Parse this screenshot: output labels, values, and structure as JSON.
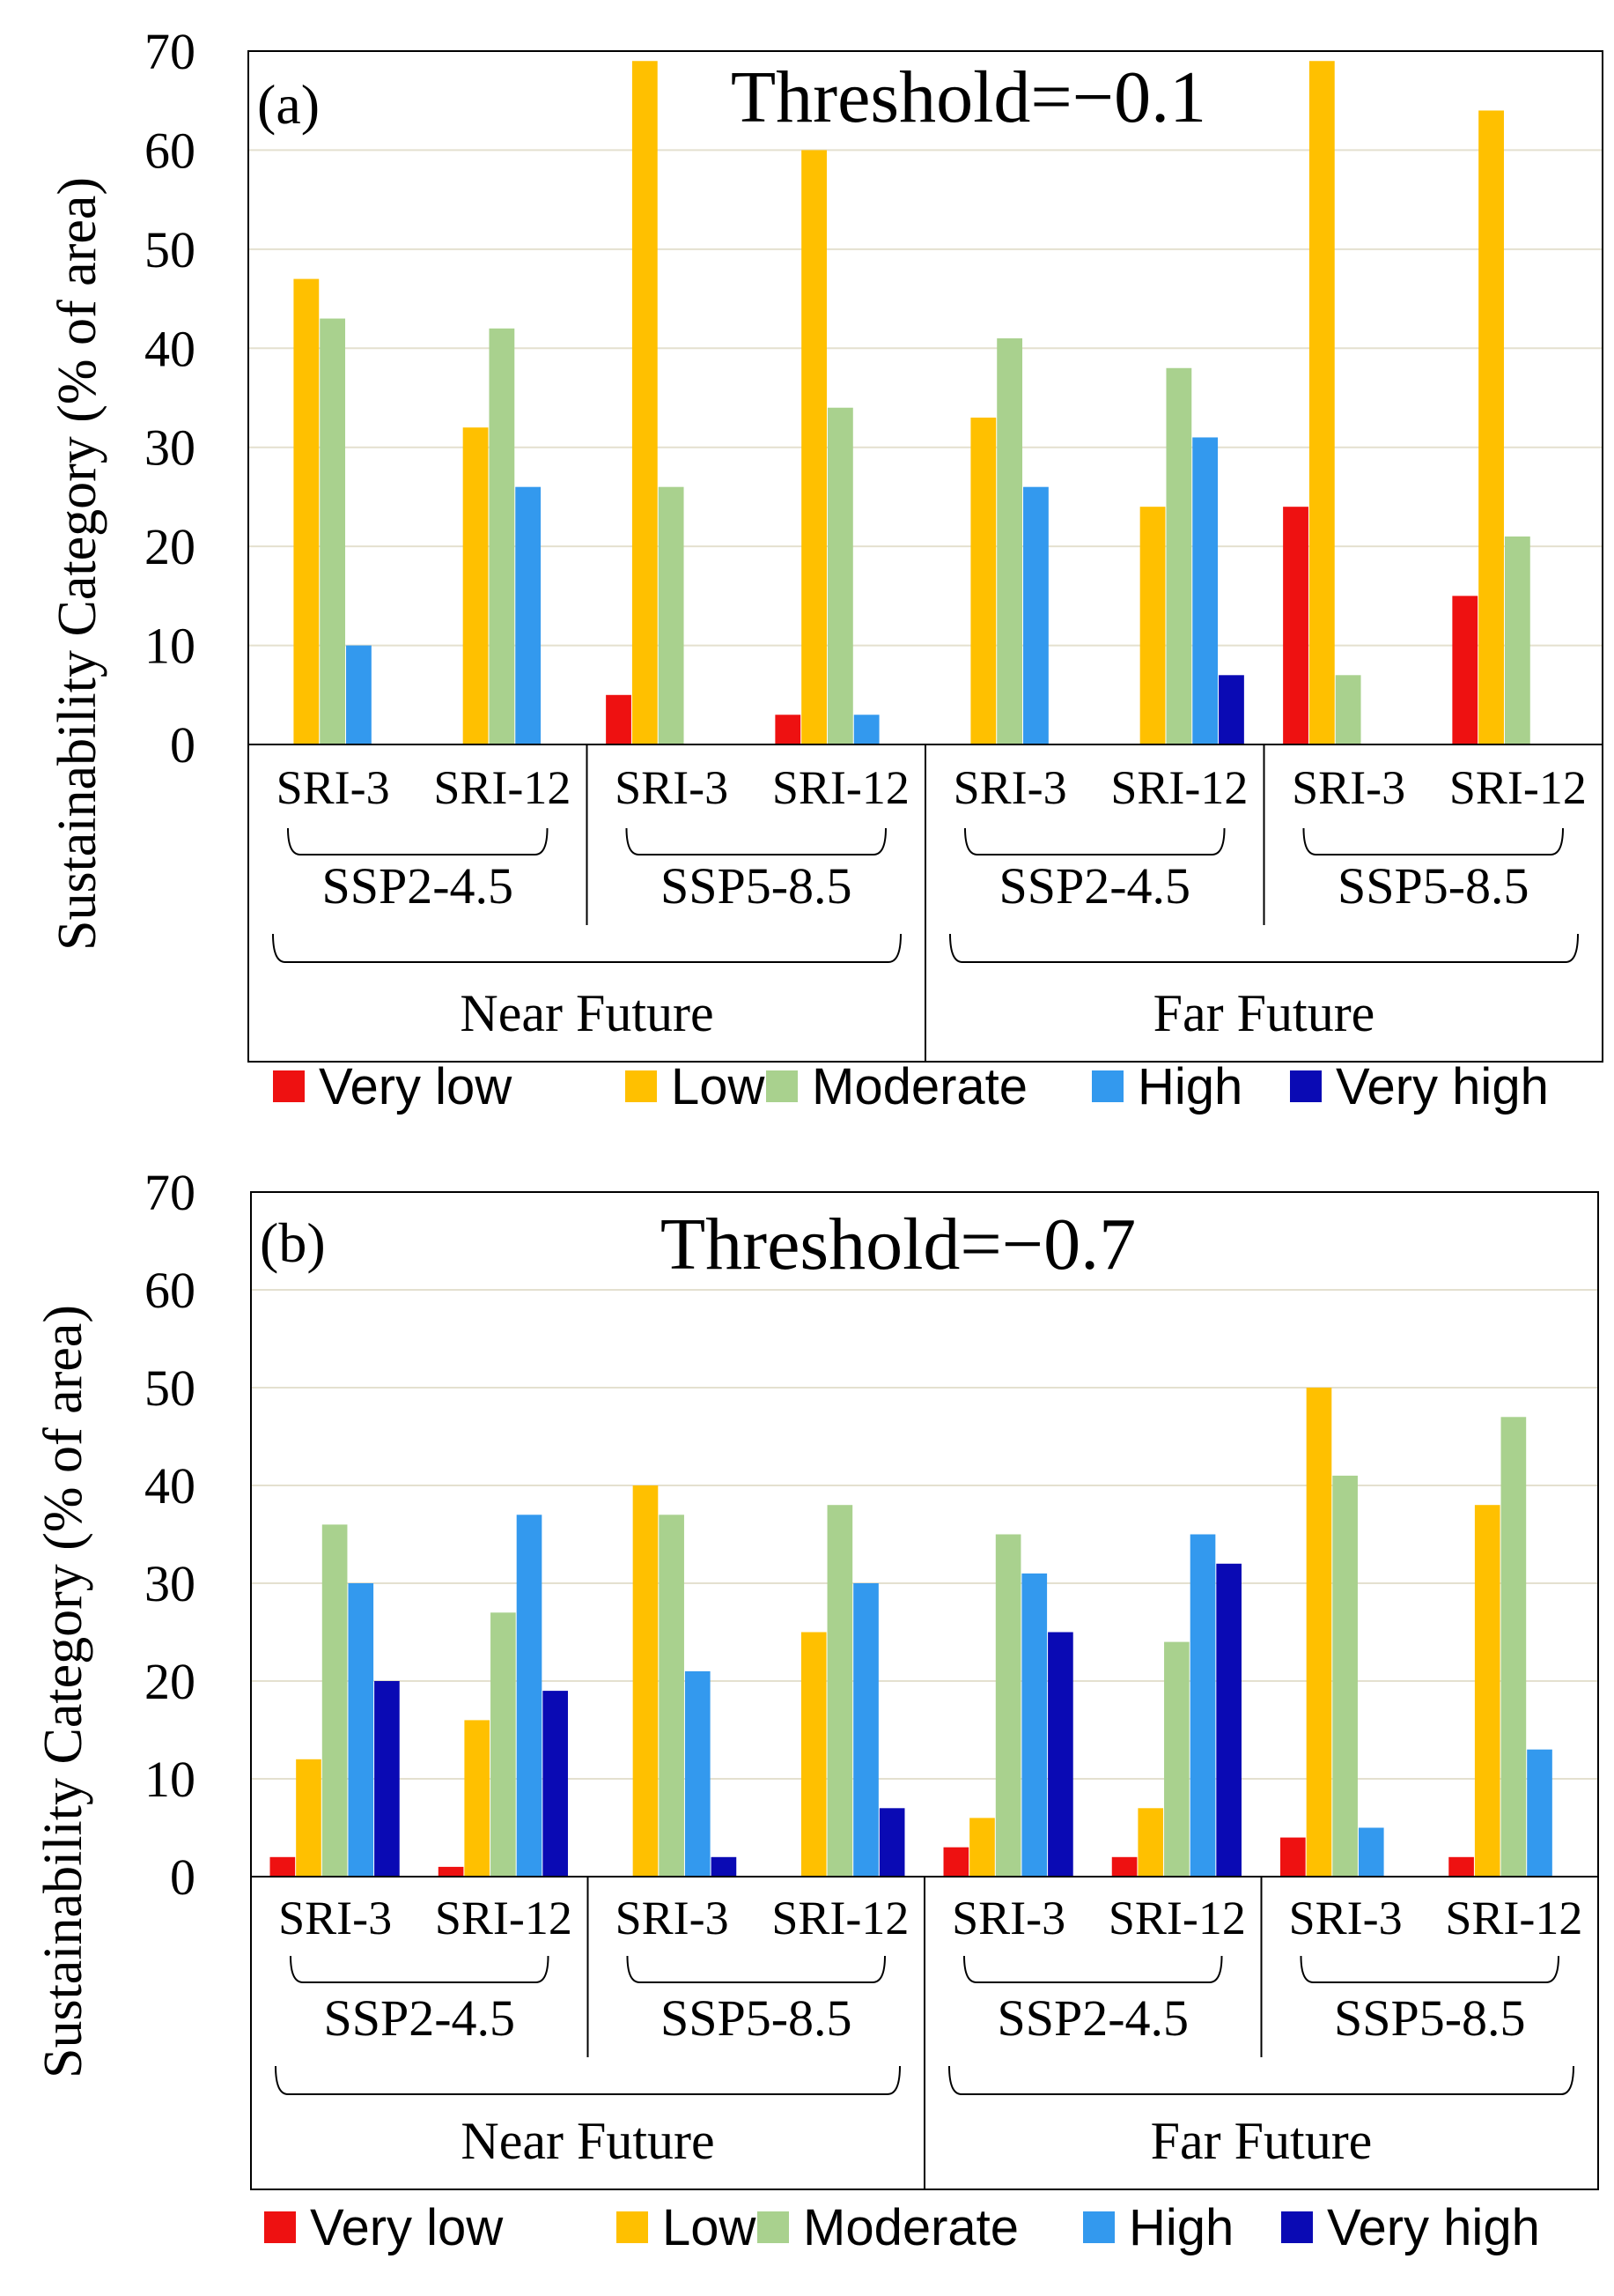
{
  "y_axis_label": "Sustainability Category (% of area)",
  "legend": {
    "items": [
      {
        "label": "Very low",
        "color": "#ee1111"
      },
      {
        "label": "Low",
        "color": "#ffc000"
      },
      {
        "label": "Moderate",
        "color": "#a9d18e"
      },
      {
        "label": "High",
        "color": "#3399ee"
      },
      {
        "label": "Very high",
        "color": "#0a0ab4"
      }
    ]
  },
  "chart_data": [
    {
      "type": "bar",
      "panel_label": "(a)",
      "title": "Threshold=−0.1",
      "ylabel": "Sustainability Category (% of area)",
      "ylim": [
        0,
        70
      ],
      "yticks": [
        "0",
        "10",
        "20",
        "30",
        "40",
        "50",
        "60",
        "70"
      ],
      "grid": true,
      "categories": [
        "SRI-3",
        "SRI-12",
        "SRI-3",
        "SRI-12",
        "SRI-3",
        "SRI-12",
        "SRI-3",
        "SRI-12"
      ],
      "scenario_groups": [
        "SSP2-4.5",
        "SSP5-8.5",
        "SSP2-4.5",
        "SSP5-8.5"
      ],
      "period_groups": [
        "Near Future",
        "Far Future"
      ],
      "series": [
        {
          "name": "Very low",
          "values": [
            0,
            0,
            5,
            3,
            0,
            0,
            24,
            15
          ]
        },
        {
          "name": "Low",
          "values": [
            47,
            32,
            69,
            60,
            33,
            24,
            69,
            64
          ]
        },
        {
          "name": "Moderate",
          "values": [
            43,
            42,
            26,
            34,
            41,
            38,
            7,
            21
          ]
        },
        {
          "name": "High",
          "values": [
            10,
            26,
            0,
            3,
            26,
            31,
            0,
            0
          ]
        },
        {
          "name": "Very high",
          "values": [
            0,
            0,
            0,
            0,
            0,
            7,
            0,
            0
          ]
        }
      ]
    },
    {
      "type": "bar",
      "panel_label": "(b)",
      "title": "Threshold=−0.7",
      "ylabel": "Sustainability Category (% of area)",
      "ylim": [
        0,
        70
      ],
      "yticks": [
        "0",
        "10",
        "20",
        "30",
        "40",
        "50",
        "60",
        "70"
      ],
      "grid": true,
      "categories": [
        "SRI-3",
        "SRI-12",
        "SRI-3",
        "SRI-12",
        "SRI-3",
        "SRI-12",
        "SRI-3",
        "SRI-12"
      ],
      "scenario_groups": [
        "SSP2-4.5",
        "SSP5-8.5",
        "SSP2-4.5",
        "SSP5-8.5"
      ],
      "period_groups": [
        "Near Future",
        "Far Future"
      ],
      "series": [
        {
          "name": "Very low",
          "values": [
            2,
            1,
            0,
            0,
            3,
            2,
            4,
            2
          ]
        },
        {
          "name": "Low",
          "values": [
            12,
            16,
            40,
            25,
            6,
            7,
            50,
            38
          ]
        },
        {
          "name": "Moderate",
          "values": [
            36,
            27,
            37,
            38,
            35,
            24,
            41,
            47
          ]
        },
        {
          "name": "High",
          "values": [
            30,
            37,
            21,
            30,
            31,
            35,
            5,
            13
          ]
        },
        {
          "name": "Very high",
          "values": [
            20,
            19,
            2,
            7,
            25,
            32,
            0,
            0
          ]
        }
      ]
    }
  ]
}
